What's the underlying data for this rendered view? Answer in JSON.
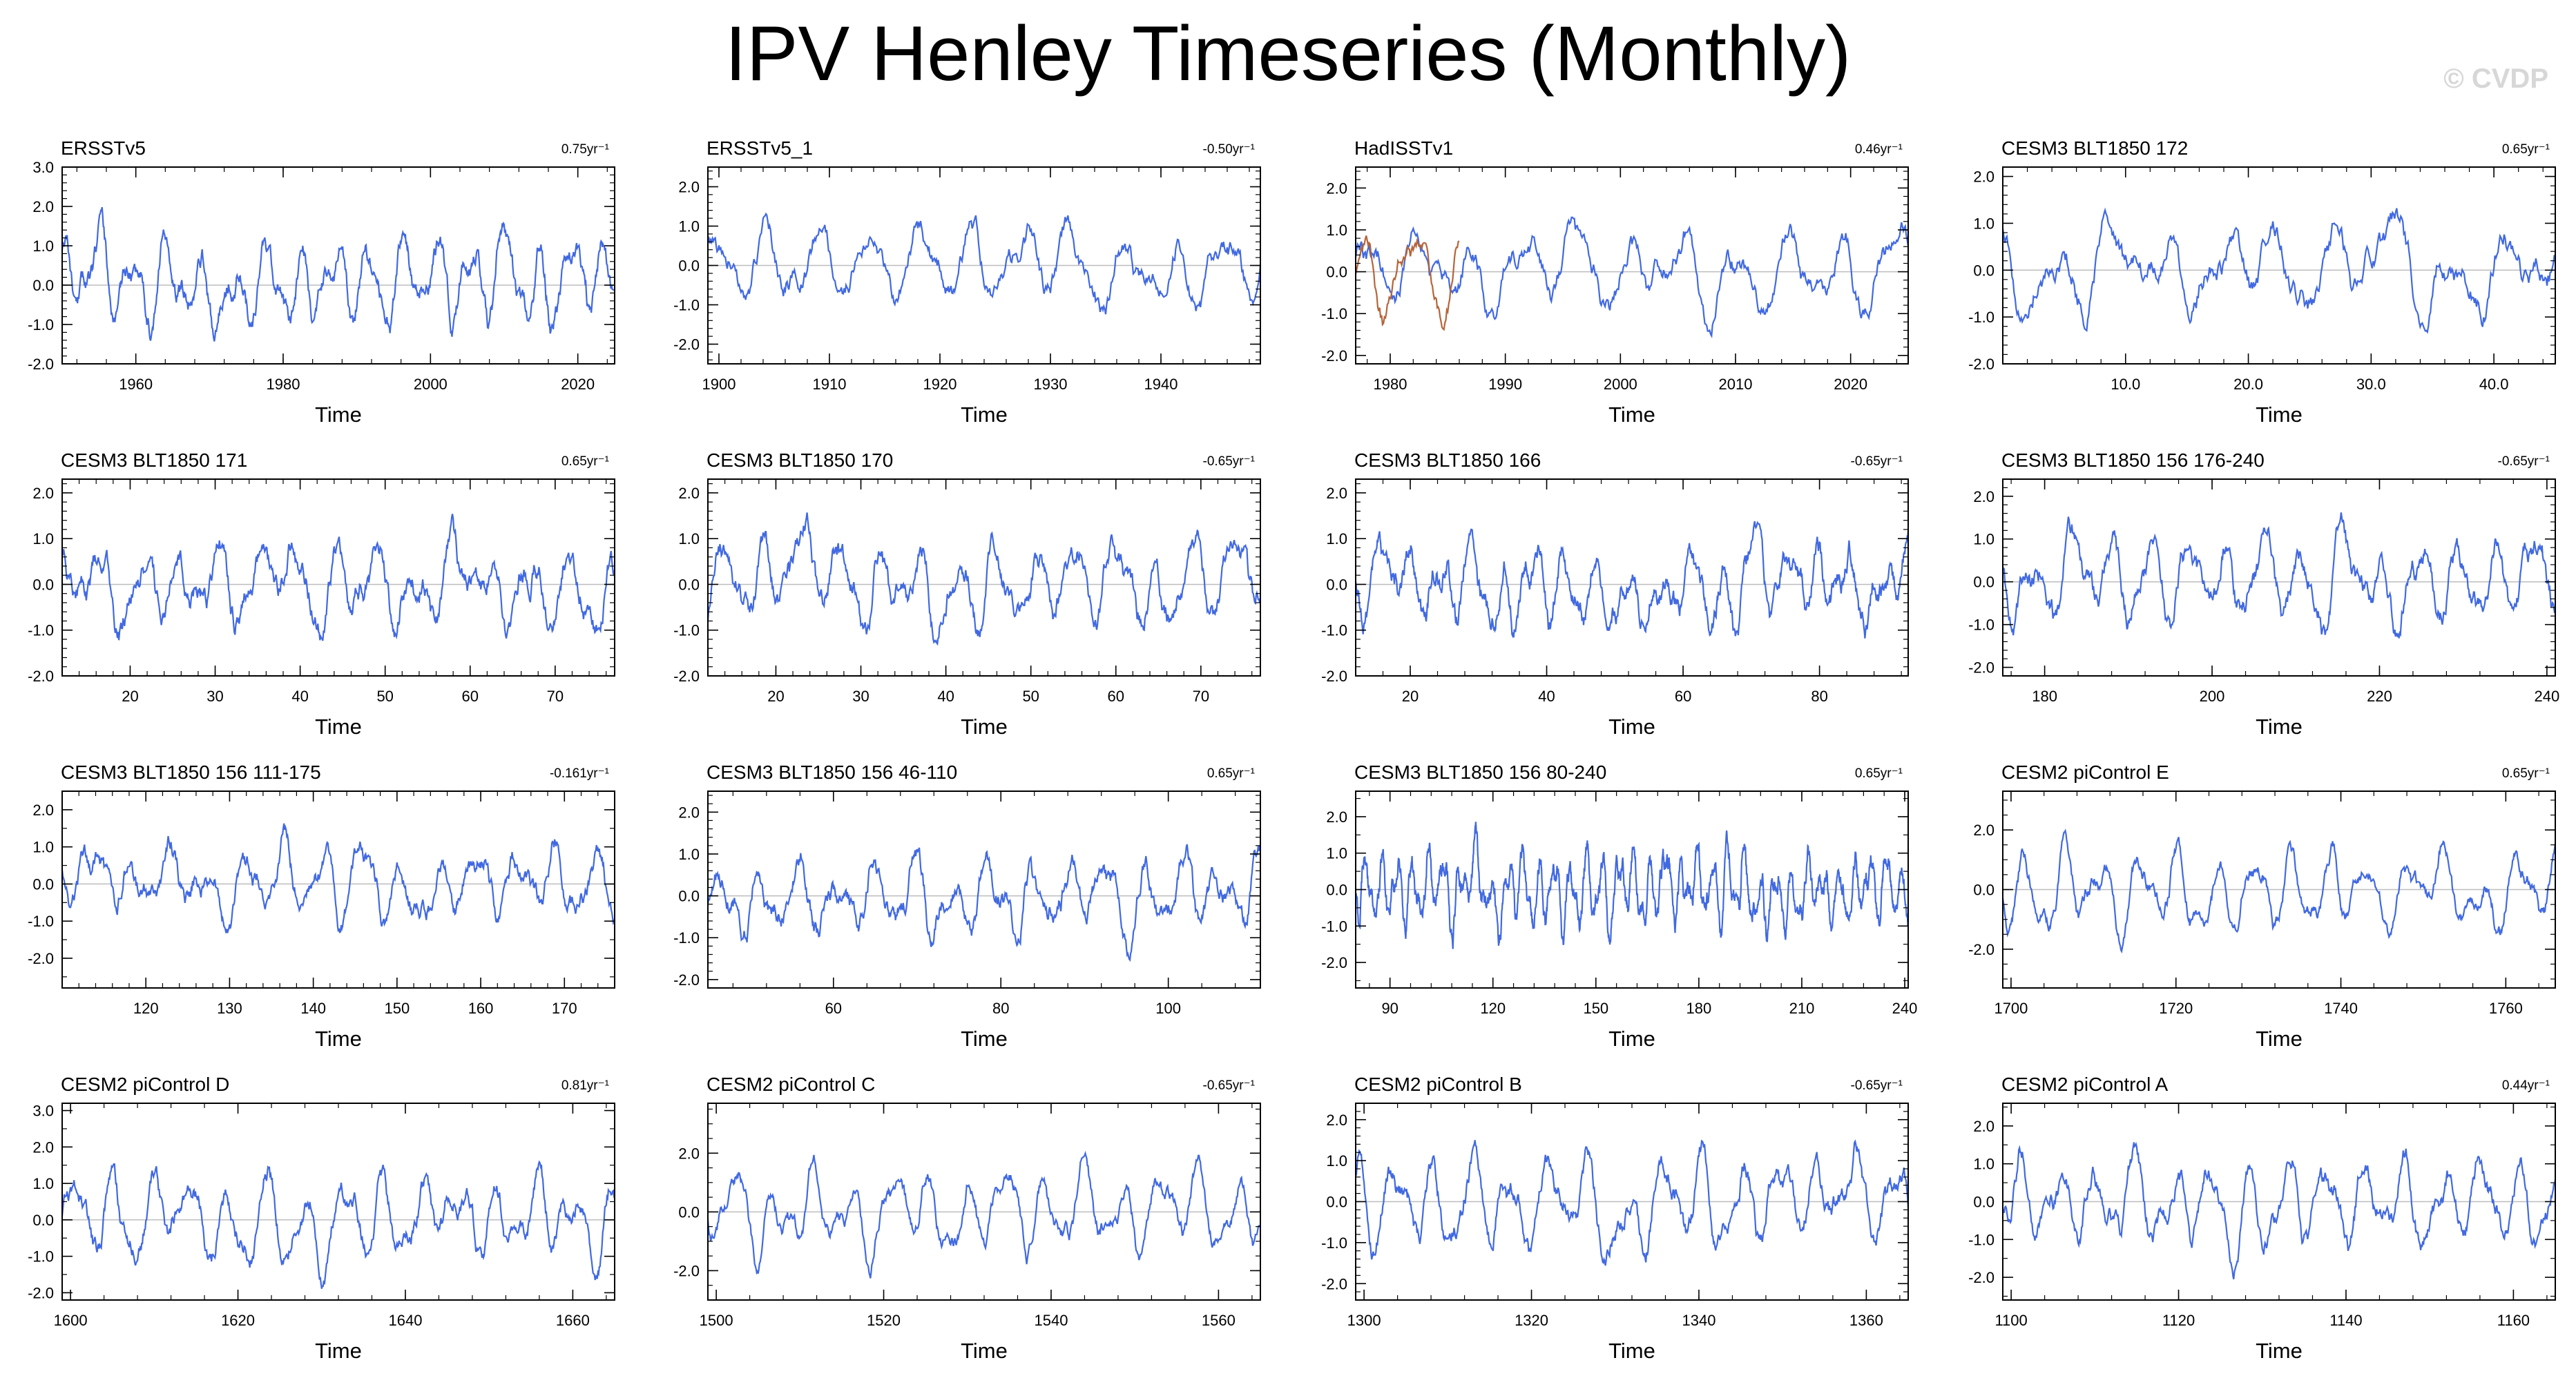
{
  "page": {
    "title": "IPV Henley Timeseries (Monthly)",
    "copyright": "© CVDP"
  },
  "chart_data": [
    {
      "type": "line",
      "title": "ERSSTv5",
      "trend": "0.75yr⁻¹",
      "xlabel": "Time",
      "xlim": [
        1950,
        2025
      ],
      "ylim": [
        -2.0,
        3.0
      ],
      "xticks": [
        1960,
        1980,
        2000,
        2020
      ],
      "yticks": [
        -2.0,
        -1.0,
        0.0,
        1.0,
        2.0,
        3.0
      ],
      "xdecimals": 0,
      "series": [
        {
          "color": "#4169e1",
          "amplitude": 1.0,
          "seed": 11,
          "values": []
        }
      ]
    },
    {
      "type": "line",
      "title": "ERSSTv5_1",
      "trend": "-0.50yr⁻¹",
      "xlabel": "Time",
      "xlim": [
        1899,
        1949
      ],
      "ylim": [
        -2.5,
        2.5
      ],
      "xticks": [
        1900,
        1910,
        1920,
        1930,
        1940
      ],
      "yticks": [
        -2.0,
        -1.0,
        0.0,
        1.0,
        2.0
      ],
      "xdecimals": 0,
      "series": [
        {
          "color": "#4169e1",
          "amplitude": 0.9,
          "seed": 23,
          "values": []
        }
      ]
    },
    {
      "type": "line",
      "title": "HadISSTv1",
      "trend": "0.46yr⁻¹",
      "xlabel": "Time",
      "xlim": [
        1977,
        2025
      ],
      "ylim": [
        -2.2,
        2.5
      ],
      "xticks": [
        1980,
        1990,
        2000,
        2010,
        2020
      ],
      "yticks": [
        -2.0,
        -1.0,
        0.0,
        1.0,
        2.0
      ],
      "xdecimals": 0,
      "series": [
        {
          "color": "#4169e1",
          "amplitude": 0.95,
          "seed": 37,
          "values": []
        },
        {
          "color": "#b5653b",
          "amplitude": 0.95,
          "seed": 38,
          "values": [],
          "xrange": [
            1977,
            1986
          ]
        }
      ]
    },
    {
      "type": "line",
      "title": "CESM3 BLT1850 172",
      "trend": "0.65yr⁻¹",
      "xlabel": "Time",
      "xlim": [
        0,
        45
      ],
      "ylim": [
        -2.0,
        2.2
      ],
      "xticks": [
        10,
        20,
        30,
        40
      ],
      "yticks": [
        -2.0,
        -1.0,
        0.0,
        1.0,
        2.0
      ],
      "xdecimals": 1,
      "series": [
        {
          "color": "#4169e1",
          "amplitude": 0.75,
          "seed": 41,
          "values": []
        }
      ]
    },
    {
      "type": "line",
      "title": "CESM3 BLT1850 171",
      "trend": "0.65yr⁻¹",
      "xlabel": "Time",
      "xlim": [
        12,
        77
      ],
      "ylim": [
        -2.0,
        2.3
      ],
      "xticks": [
        20,
        30,
        40,
        50,
        60,
        70
      ],
      "yticks": [
        -2.0,
        -1.0,
        0.0,
        1.0,
        2.0
      ],
      "xdecimals": 0,
      "series": [
        {
          "color": "#4169e1",
          "amplitude": 0.8,
          "seed": 53,
          "values": []
        }
      ]
    },
    {
      "type": "line",
      "title": "CESM3 BLT1850 170",
      "trend": "-0.65yr⁻¹",
      "xlabel": "Time",
      "xlim": [
        12,
        77
      ],
      "ylim": [
        -2.0,
        2.3
      ],
      "xticks": [
        20,
        30,
        40,
        50,
        60,
        70
      ],
      "yticks": [
        -2.0,
        -1.0,
        0.0,
        1.0,
        2.0
      ],
      "xdecimals": 0,
      "series": [
        {
          "color": "#4169e1",
          "amplitude": 0.8,
          "seed": 61,
          "values": []
        }
      ]
    },
    {
      "type": "line",
      "title": "CESM3 BLT1850 166",
      "trend": "-0.65yr⁻¹",
      "xlabel": "Time",
      "xlim": [
        12,
        93
      ],
      "ylim": [
        -2.0,
        2.3
      ],
      "xticks": [
        20,
        40,
        60,
        80
      ],
      "yticks": [
        -2.0,
        -1.0,
        0.0,
        1.0,
        2.0
      ],
      "xdecimals": 0,
      "series": [
        {
          "color": "#4169e1",
          "amplitude": 0.8,
          "seed": 71,
          "values": []
        }
      ]
    },
    {
      "type": "line",
      "title": "CESM3 BLT1850 156 176-240",
      "trend": "-0.65yr⁻¹",
      "xlabel": "Time",
      "xlim": [
        175,
        241
      ],
      "ylim": [
        -2.2,
        2.4
      ],
      "xticks": [
        180,
        200,
        220,
        240
      ],
      "yticks": [
        -2.0,
        -1.0,
        0.0,
        1.0,
        2.0
      ],
      "xdecimals": 0,
      "series": [
        {
          "color": "#4169e1",
          "amplitude": 0.85,
          "seed": 83,
          "values": []
        }
      ]
    },
    {
      "type": "line",
      "title": "CESM3 BLT1850 156 111-175",
      "trend": "-0.161yr⁻¹",
      "xlabel": "Time",
      "xlim": [
        110,
        176
      ],
      "ylim": [
        -2.8,
        2.5
      ],
      "xticks": [
        120,
        130,
        140,
        150,
        160,
        170
      ],
      "yticks": [
        -2.0,
        -1.0,
        0.0,
        1.0,
        2.0
      ],
      "xdecimals": 0,
      "series": [
        {
          "color": "#4169e1",
          "amplitude": 0.85,
          "seed": 97,
          "values": []
        }
      ]
    },
    {
      "type": "line",
      "title": "CESM3 BLT1850 156 46-110",
      "trend": "0.65yr⁻¹",
      "xlabel": "Time",
      "xlim": [
        45,
        111
      ],
      "ylim": [
        -2.2,
        2.5
      ],
      "xticks": [
        60,
        80,
        100
      ],
      "yticks": [
        -2.0,
        -1.0,
        0.0,
        1.0,
        2.0
      ],
      "xdecimals": 0,
      "series": [
        {
          "color": "#4169e1",
          "amplitude": 0.85,
          "seed": 103,
          "values": []
        }
      ]
    },
    {
      "type": "line",
      "title": "CESM3 BLT1850 156 80-240",
      "trend": "0.65yr⁻¹",
      "xlabel": "Time",
      "xlim": [
        80,
        241
      ],
      "ylim": [
        -2.7,
        2.7
      ],
      "xticks": [
        90,
        120,
        150,
        180,
        210,
        240
      ],
      "yticks": [
        -2.0,
        -1.0,
        0.0,
        1.0,
        2.0
      ],
      "xdecimals": 0,
      "series": [
        {
          "color": "#4169e1",
          "amplitude": 0.95,
          "seed": 113,
          "values": []
        }
      ]
    },
    {
      "type": "line",
      "title": "CESM2 piControl E",
      "trend": "0.65yr⁻¹",
      "xlabel": "Time",
      "xlim": [
        1699,
        1766
      ],
      "ylim": [
        -3.3,
        3.3
      ],
      "xticks": [
        1700,
        1720,
        1740,
        1760
      ],
      "yticks": [
        -2.0,
        0.0,
        2.0
      ],
      "xdecimals": 0,
      "series": [
        {
          "color": "#4169e1",
          "amplitude": 1.3,
          "seed": 127,
          "values": []
        }
      ]
    },
    {
      "type": "line",
      "title": "CESM2 piControl D",
      "trend": "0.81yr⁻¹",
      "xlabel": "Time",
      "xlim": [
        1599,
        1665
      ],
      "ylim": [
        -2.2,
        3.2
      ],
      "xticks": [
        1600,
        1620,
        1640,
        1660
      ],
      "yticks": [
        -2.0,
        -1.0,
        0.0,
        1.0,
        2.0,
        3.0
      ],
      "xdecimals": 0,
      "series": [
        {
          "color": "#4169e1",
          "amplitude": 1.05,
          "seed": 131,
          "values": []
        }
      ]
    },
    {
      "type": "line",
      "title": "CESM2 piControl C",
      "trend": "-0.65yr⁻¹",
      "xlabel": "Time",
      "xlim": [
        1499,
        1565
      ],
      "ylim": [
        -3.0,
        3.7
      ],
      "xticks": [
        1500,
        1520,
        1540,
        1560
      ],
      "yticks": [
        -2.0,
        0.0,
        2.0
      ],
      "xdecimals": 0,
      "series": [
        {
          "color": "#4169e1",
          "amplitude": 1.3,
          "seed": 139,
          "values": []
        }
      ]
    },
    {
      "type": "line",
      "title": "CESM2 piControl B",
      "trend": "-0.65yr⁻¹",
      "xlabel": "Time",
      "xlim": [
        1299,
        1365
      ],
      "ylim": [
        -2.4,
        2.4
      ],
      "xticks": [
        1300,
        1320,
        1340,
        1360
      ],
      "yticks": [
        -2.0,
        -1.0,
        0.0,
        1.0,
        2.0
      ],
      "xdecimals": 0,
      "series": [
        {
          "color": "#4169e1",
          "amplitude": 1.0,
          "seed": 149,
          "values": []
        }
      ]
    },
    {
      "type": "line",
      "title": "CESM2 piControl A",
      "trend": "0.44yr⁻¹",
      "xlabel": "Time",
      "xlim": [
        1099,
        1165
      ],
      "ylim": [
        -2.6,
        2.6
      ],
      "xticks": [
        1100,
        1120,
        1140,
        1160
      ],
      "yticks": [
        -2.0,
        -1.0,
        0.0,
        1.0,
        2.0
      ],
      "xdecimals": 0,
      "series": [
        {
          "color": "#4169e1",
          "amplitude": 1.05,
          "seed": 157,
          "values": []
        }
      ]
    }
  ]
}
